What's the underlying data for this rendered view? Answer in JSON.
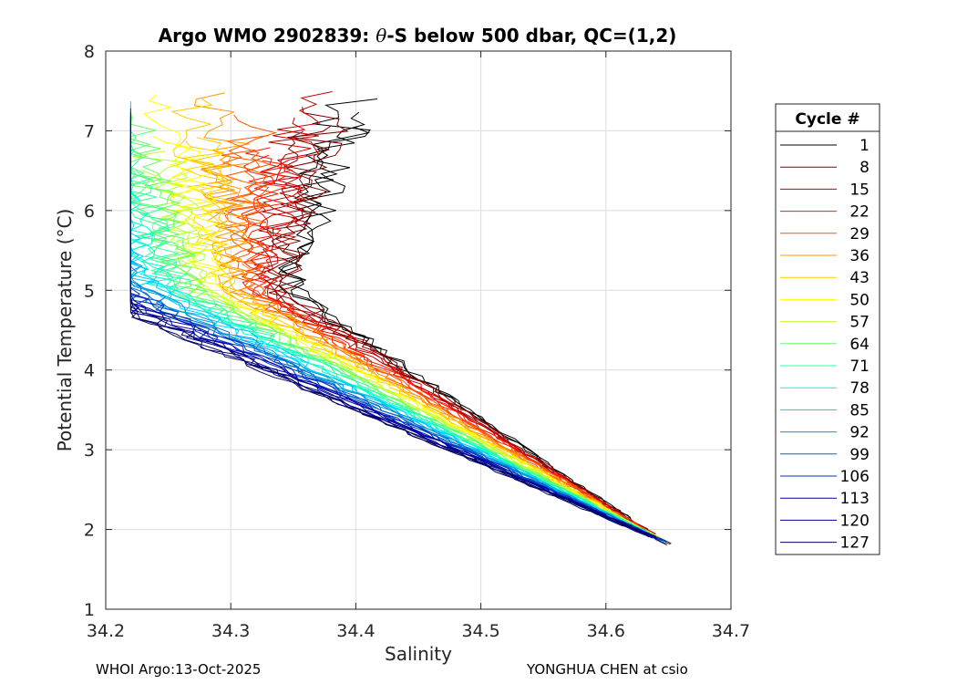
{
  "chart_data": {
    "type": "line",
    "title": "Argo WMO 2902839: θ-S below 500 dbar,  QC=(1,2)",
    "title_prefix": "Argo WMO 2902839: ",
    "title_symbol": "θ",
    "title_suffix": "-S below 500 dbar,  QC=(1,2)",
    "xlabel": "Salinity",
    "ylabel": "Potential Temperature (°C)",
    "xlim": [
      34.2,
      34.7
    ],
    "ylim": [
      1,
      8
    ],
    "xticks": [
      "34.2",
      "34.3",
      "34.4",
      "34.5",
      "34.6",
      "34.7"
    ],
    "yticks": [
      "1",
      "2",
      "3",
      "4",
      "5",
      "6",
      "7",
      "8"
    ],
    "grid": true,
    "legend_title": "Cycle #",
    "legend_position": "right",
    "series": [
      {
        "name": "1",
        "color": "#000000"
      },
      {
        "name": "8",
        "color": "#800000"
      },
      {
        "name": "15",
        "color": "#c00000"
      },
      {
        "name": "22",
        "color": "#ff1a00"
      },
      {
        "name": "29",
        "color": "#ff5500"
      },
      {
        "name": "36",
        "color": "#ff9900"
      },
      {
        "name": "43",
        "color": "#ffcc00"
      },
      {
        "name": "50",
        "color": "#ffff00"
      },
      {
        "name": "57",
        "color": "#bbff33"
      },
      {
        "name": "64",
        "color": "#66ff66"
      },
      {
        "name": "71",
        "color": "#33ff99"
      },
      {
        "name": "78",
        "color": "#00ffcc"
      },
      {
        "name": "85",
        "color": "#00ccff"
      },
      {
        "name": "92",
        "color": "#0099dd"
      },
      {
        "name": "99",
        "color": "#0066cc"
      },
      {
        "name": "106",
        "color": "#0033bb"
      },
      {
        "name": "113",
        "color": "#0000aa"
      },
      {
        "name": "120",
        "color": "#000088"
      },
      {
        "name": "127",
        "color": "#000066"
      }
    ]
  },
  "footer": {
    "left": "WHOI Argo:13-Oct-2025",
    "right": "YONGHUA CHEN at csio"
  }
}
